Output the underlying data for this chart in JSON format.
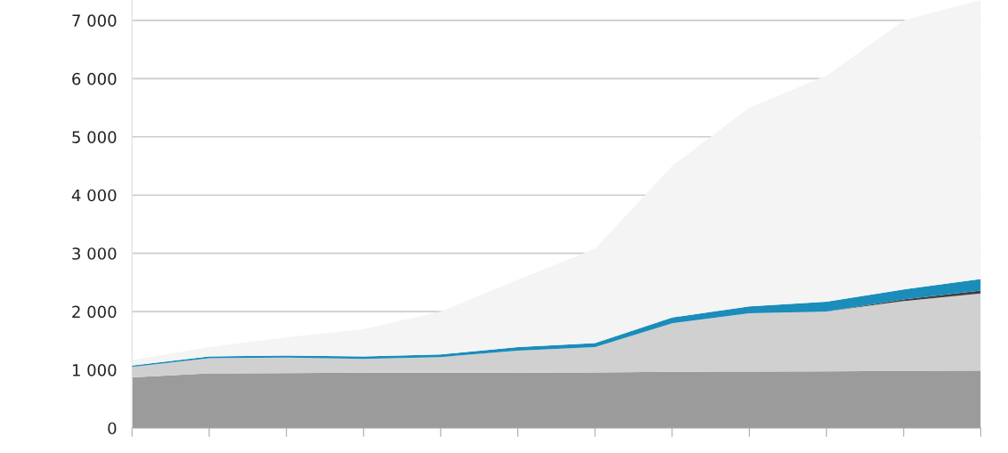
{
  "chart_data": {
    "type": "area",
    "stacked": true,
    "categories": [
      null,
      null,
      null,
      null,
      null,
      null,
      null,
      null,
      null,
      null,
      null,
      null
    ],
    "series": [
      {
        "color": "#9b9b9b",
        "values": [
          870,
          940,
          945,
          950,
          950,
          950,
          955,
          965,
          970,
          975,
          980,
          985
        ]
      },
      {
        "color": "#d0d0d0",
        "values": [
          180,
          260,
          265,
          240,
          270,
          380,
          435,
          835,
          1000,
          1025,
          1200,
          1325
        ]
      },
      {
        "color": "#404040",
        "values": [
          0,
          0,
          0,
          0,
          0,
          0,
          0,
          0,
          0,
          0,
          30,
          50
        ]
      },
      {
        "color": "#1a8dbb",
        "values": [
          25,
          30,
          35,
          40,
          45,
          60,
          70,
          100,
          120,
          170,
          170,
          200
        ]
      },
      {
        "color": "#f4f4f4",
        "values": [
          95,
          160,
          315,
          470,
          735,
          1160,
          1620,
          2600,
          3410,
          3880,
          4620,
          4790
        ]
      }
    ],
    "ylim": [
      0,
      7350
    ],
    "yticks": [
      {
        "value": 0,
        "label": "0"
      },
      {
        "value": 1000,
        "label": "1 000"
      },
      {
        "value": 2000,
        "label": "2 000"
      },
      {
        "value": 3000,
        "label": "3 000"
      },
      {
        "value": 4000,
        "label": "4 000"
      },
      {
        "value": 5000,
        "label": "5 000"
      },
      {
        "value": 6000,
        "label": "6 000"
      },
      {
        "value": 7000,
        "label": "7 000"
      }
    ],
    "grid": "y"
  }
}
